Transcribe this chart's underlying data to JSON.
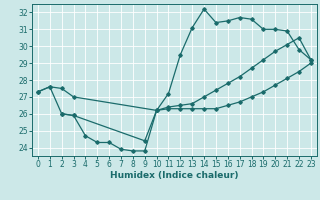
{
  "xlabel": "Humidex (Indice chaleur)",
  "bg_color": "#cce8e8",
  "line_color": "#1a6b6b",
  "xlim": [
    -0.5,
    23.5
  ],
  "ylim": [
    23.5,
    32.5
  ],
  "yticks": [
    24,
    25,
    26,
    27,
    28,
    29,
    30,
    31,
    32
  ],
  "xticks": [
    0,
    1,
    2,
    3,
    4,
    5,
    6,
    7,
    8,
    9,
    10,
    11,
    12,
    13,
    14,
    15,
    16,
    17,
    18,
    19,
    20,
    21,
    22,
    23
  ],
  "series1_x": [
    0,
    1,
    2,
    3,
    10,
    11,
    12,
    13,
    14,
    15,
    16,
    17,
    18,
    19,
    20,
    21,
    22,
    23
  ],
  "series1_y": [
    27.3,
    27.6,
    27.5,
    27.0,
    26.2,
    26.4,
    26.5,
    26.6,
    27.0,
    27.4,
    27.8,
    28.2,
    28.7,
    29.2,
    29.7,
    30.1,
    30.5,
    29.2
  ],
  "series2_x": [
    0,
    1,
    2,
    3,
    9,
    10,
    11,
    12,
    13,
    14,
    15,
    16,
    17,
    18,
    19,
    20,
    21,
    22,
    23
  ],
  "series2_y": [
    27.3,
    27.6,
    26.0,
    25.9,
    24.4,
    26.2,
    27.2,
    29.5,
    31.1,
    32.2,
    31.4,
    31.5,
    31.7,
    31.6,
    31.0,
    31.0,
    30.9,
    29.8,
    29.2
  ],
  "series3_x": [
    2,
    3,
    4,
    5,
    6,
    7,
    8,
    9,
    10,
    11,
    12,
    13,
    14,
    15,
    16,
    17,
    18,
    19,
    20,
    21,
    22,
    23
  ],
  "series3_y": [
    26.0,
    25.9,
    24.7,
    24.3,
    24.3,
    23.9,
    23.8,
    23.8,
    26.2,
    26.3,
    26.3,
    26.3,
    26.3,
    26.3,
    26.5,
    26.7,
    27.0,
    27.3,
    27.7,
    28.1,
    28.5,
    29.0
  ]
}
